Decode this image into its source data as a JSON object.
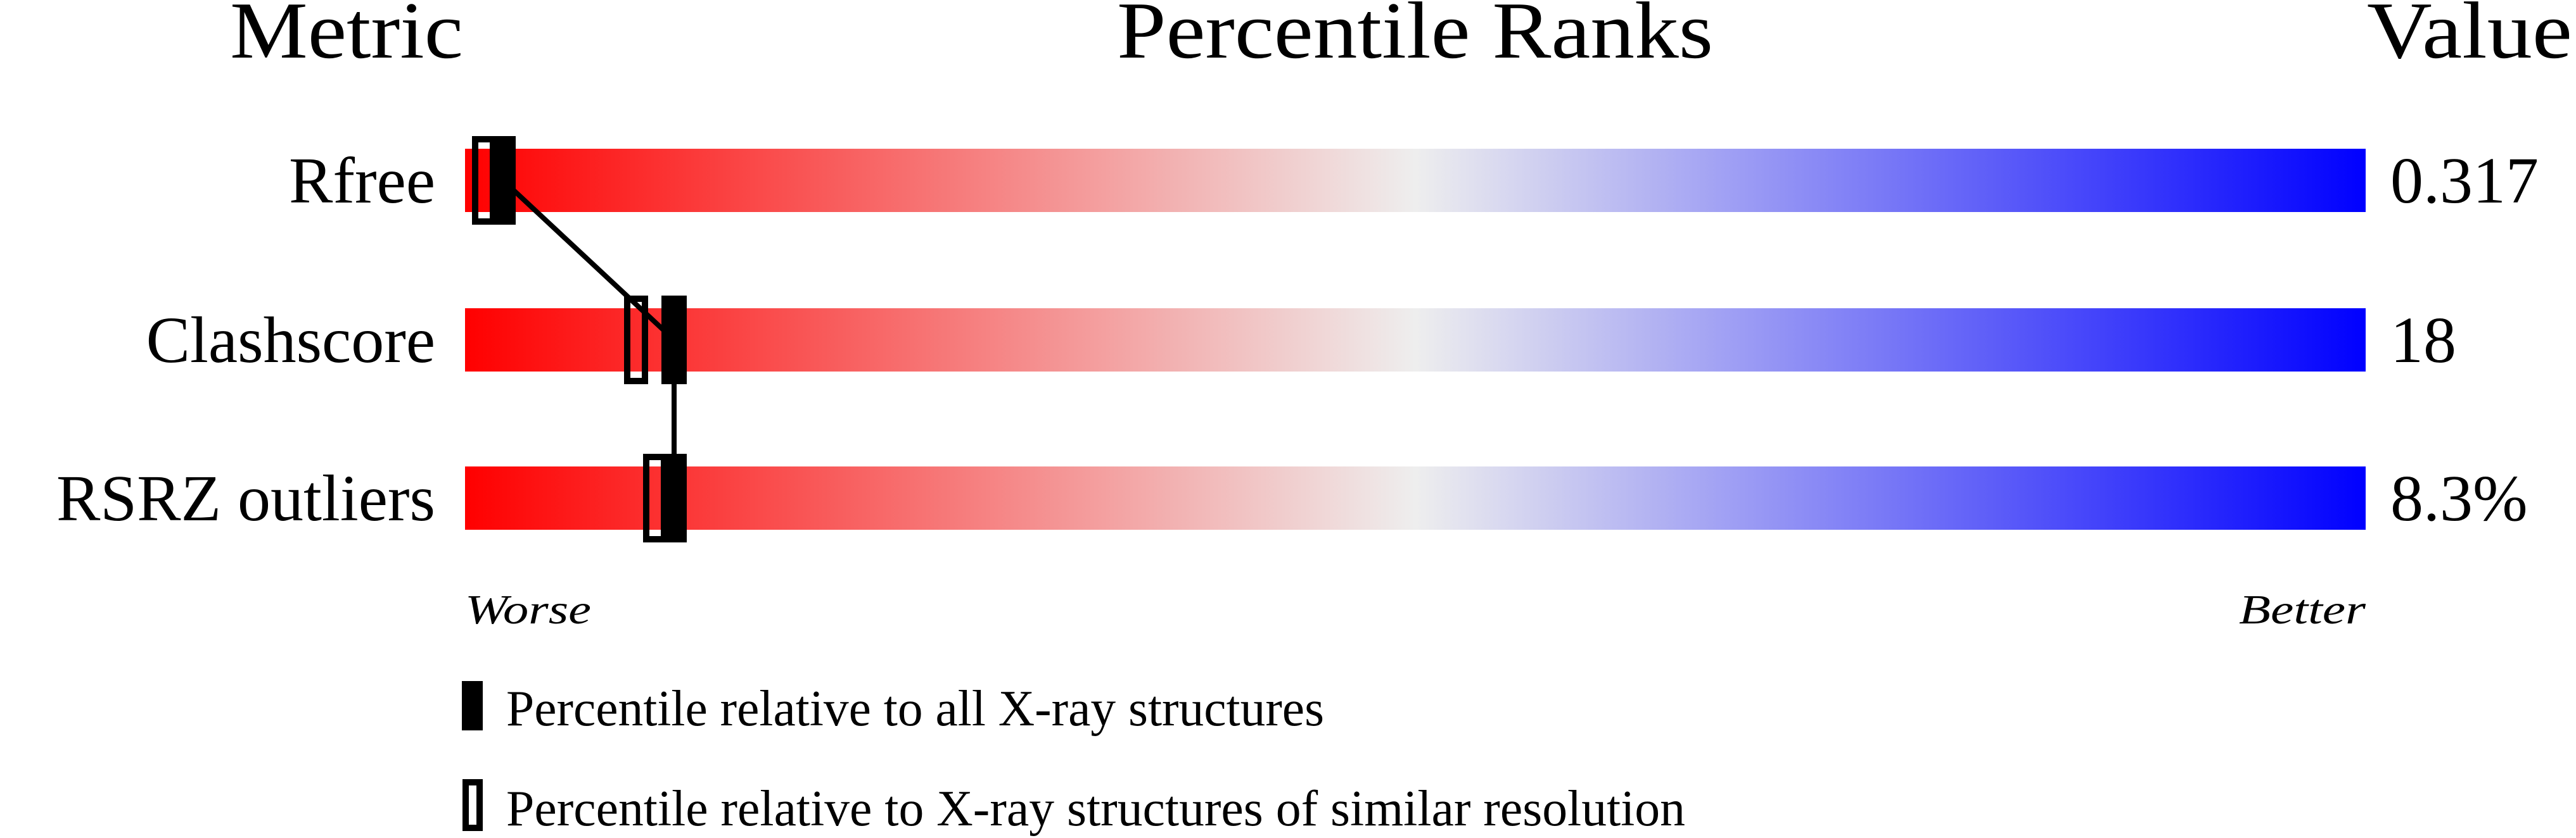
{
  "chart_data": {
    "type": "percentile-slider",
    "headers": {
      "metric": "Metric",
      "ranks": "Percentile Ranks",
      "value": "Value"
    },
    "metrics": [
      {
        "name": "Rfree",
        "value": "0.317",
        "percentile_all": 2,
        "percentile_similar": 1
      },
      {
        "name": "Clashscore",
        "value": "18",
        "percentile_all": 11,
        "percentile_similar": 9
      },
      {
        "name": "RSRZ outliers",
        "value": "8.3%",
        "percentile_all": 11,
        "percentile_similar": 10
      }
    ],
    "xlim": [
      0,
      100
    ],
    "scale_labels": {
      "low": "Worse",
      "high": "Better"
    },
    "gradient_colors": {
      "worse": "#ff0000",
      "middle": "#eeeeee",
      "better": "#0000ff"
    },
    "legend": [
      {
        "marker": "filled",
        "label": "Percentile relative to all X-ray structures"
      },
      {
        "marker": "open",
        "label": "Percentile relative to X-ray structures of similar resolution"
      }
    ]
  }
}
